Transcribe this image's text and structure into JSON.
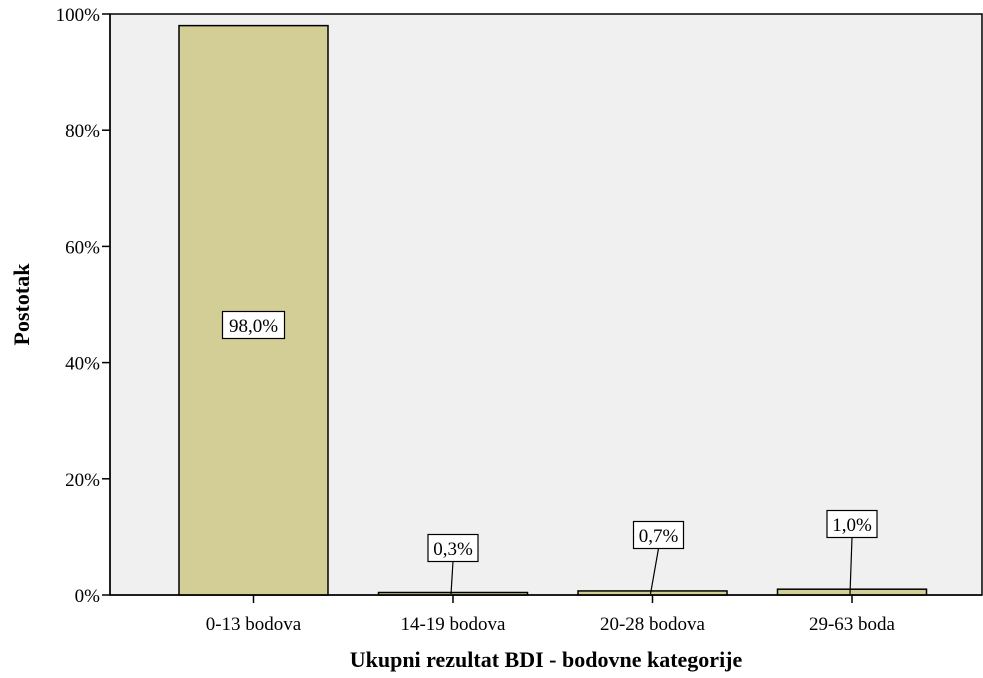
{
  "chart_data": {
    "type": "bar",
    "xlabel": "Ukupni rezultat BDI - bodovne kategorije",
    "ylabel": "Postotak",
    "categories": [
      "0-13 bodova",
      "14-19 bodova",
      "20-28 bodova",
      "29-63 boda"
    ],
    "values": [
      98.0,
      0.3,
      0.7,
      1.0
    ],
    "data_labels": [
      "98,0%",
      "0,3%",
      "0,7%",
      "1,0%"
    ],
    "ylim": [
      0,
      100
    ],
    "yticks": [
      0,
      20,
      40,
      60,
      80,
      100
    ],
    "ytick_labels": [
      "0%",
      "20%",
      "40%",
      "60%",
      "80%",
      "100%"
    ],
    "grid": false,
    "legend": "none",
    "colors": {
      "bar": "#d3cd96",
      "bar_border": "#000000",
      "plot_bg": "#f0f0f0",
      "page_bg": "#ffffff"
    }
  }
}
